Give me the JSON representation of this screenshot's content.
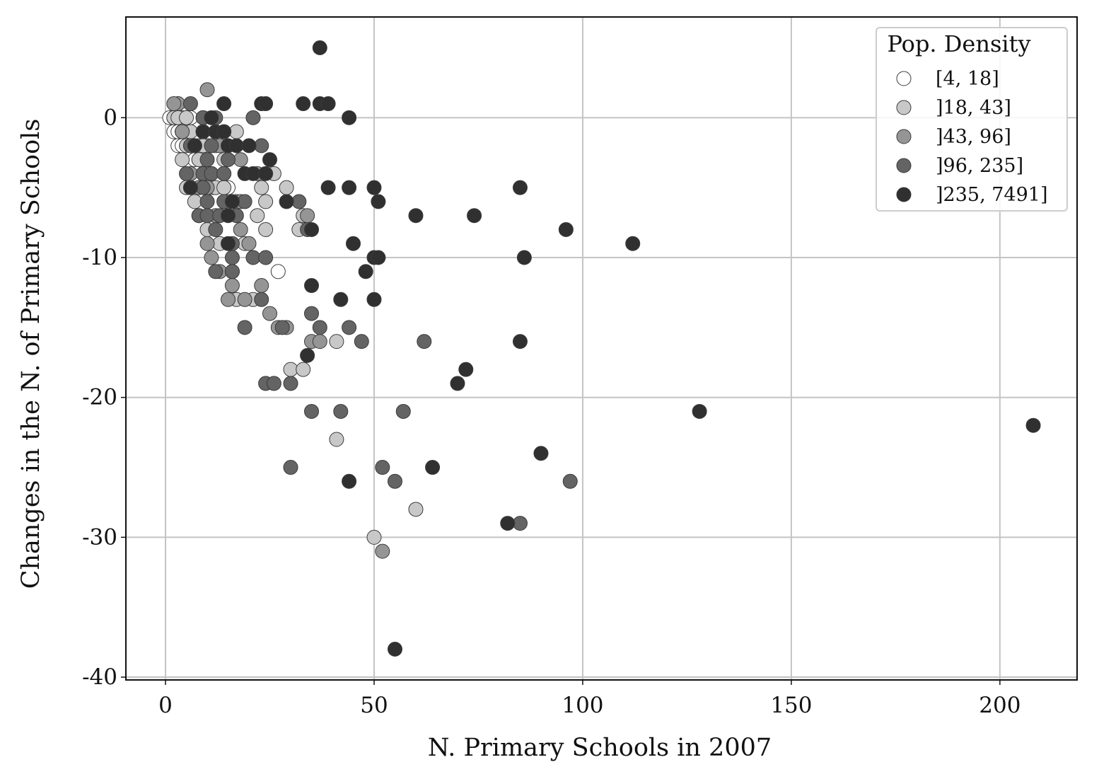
{
  "chart_data": {
    "type": "scatter",
    "xlabel": "N. Primary Schools in 2007",
    "ylabel": "Changes in the N. of Primary Schools",
    "xlim": [
      -9.5,
      218.5
    ],
    "ylim": [
      -40.2,
      7.2
    ],
    "xticks": [
      0,
      50,
      100,
      150,
      200
    ],
    "yticks": [
      0,
      -10,
      -20,
      -30,
      -40
    ],
    "grid": true,
    "legend": {
      "title": "Pop. Density",
      "placement": "top-right"
    },
    "series": [
      {
        "name": "[4, 18]",
        "color": "#ffffff",
        "points": [
          [
            1,
            0
          ],
          [
            2,
            0
          ],
          [
            3,
            0
          ],
          [
            4,
            0
          ],
          [
            5,
            0
          ],
          [
            6,
            0
          ],
          [
            2,
            -1
          ],
          [
            3,
            -1
          ],
          [
            4,
            -1
          ],
          [
            5,
            -1
          ],
          [
            3,
            -2
          ],
          [
            4,
            -2
          ],
          [
            6,
            -2
          ],
          [
            8,
            -2
          ],
          [
            10,
            -2
          ],
          [
            7,
            -3
          ],
          [
            8,
            -3
          ],
          [
            11,
            -5
          ],
          [
            15,
            -5
          ],
          [
            15,
            -6
          ],
          [
            27,
            -11
          ]
        ]
      },
      {
        "name": "]18, 43]",
        "color": "#c8c8c8",
        "points": [
          [
            2,
            0
          ],
          [
            3,
            0
          ],
          [
            5,
            0
          ],
          [
            9,
            0
          ],
          [
            4,
            -1
          ],
          [
            6,
            -1
          ],
          [
            17,
            -1
          ],
          [
            5,
            -2
          ],
          [
            9,
            -2
          ],
          [
            12,
            -2
          ],
          [
            4,
            -3
          ],
          [
            8,
            -3
          ],
          [
            14,
            -3
          ],
          [
            9,
            -4
          ],
          [
            26,
            -4
          ],
          [
            5,
            -5
          ],
          [
            12,
            -5
          ],
          [
            14,
            -5
          ],
          [
            23,
            -5
          ],
          [
            29,
            -5
          ],
          [
            7,
            -6
          ],
          [
            17,
            -6
          ],
          [
            24,
            -6
          ],
          [
            8,
            -7
          ],
          [
            22,
            -7
          ],
          [
            33,
            -7
          ],
          [
            10,
            -8
          ],
          [
            24,
            -8
          ],
          [
            32,
            -8
          ],
          [
            13,
            -9
          ],
          [
            19,
            -9
          ],
          [
            17,
            -13
          ],
          [
            21,
            -13
          ],
          [
            41,
            -16
          ],
          [
            30,
            -18
          ],
          [
            33,
            -18
          ],
          [
            41,
            -23
          ],
          [
            60,
            -28
          ],
          [
            50,
            -30
          ]
        ]
      },
      {
        "name": "]43, 96]",
        "color": "#959595",
        "points": [
          [
            3,
            1
          ],
          [
            10,
            2
          ],
          [
            2,
            1
          ],
          [
            4,
            -1
          ],
          [
            9,
            -1
          ],
          [
            14,
            -1
          ],
          [
            6,
            -2
          ],
          [
            13,
            -2
          ],
          [
            18,
            -3
          ],
          [
            6,
            -4
          ],
          [
            11,
            -4
          ],
          [
            14,
            -4
          ],
          [
            22,
            -4
          ],
          [
            8,
            -5
          ],
          [
            10,
            -5
          ],
          [
            18,
            -6
          ],
          [
            34,
            -7
          ],
          [
            12,
            -7
          ],
          [
            18,
            -8
          ],
          [
            10,
            -9
          ],
          [
            20,
            -9
          ],
          [
            11,
            -10
          ],
          [
            13,
            -11
          ],
          [
            16,
            -11
          ],
          [
            23,
            -12
          ],
          [
            16,
            -12
          ],
          [
            15,
            -13
          ],
          [
            19,
            -13
          ],
          [
            25,
            -14
          ],
          [
            27,
            -15
          ],
          [
            29,
            -15
          ],
          [
            35,
            -16
          ],
          [
            37,
            -16
          ],
          [
            52,
            -31
          ]
        ]
      },
      {
        "name": "]96, 235]",
        "color": "#646464",
        "points": [
          [
            6,
            1
          ],
          [
            21,
            0
          ],
          [
            9,
            0
          ],
          [
            12,
            0
          ],
          [
            6,
            -2
          ],
          [
            7,
            -2
          ],
          [
            11,
            -2
          ],
          [
            23,
            -2
          ],
          [
            10,
            -3
          ],
          [
            15,
            -3
          ],
          [
            5,
            -4
          ],
          [
            9,
            -4
          ],
          [
            11,
            -4
          ],
          [
            14,
            -4
          ],
          [
            6,
            -5
          ],
          [
            9,
            -5
          ],
          [
            10,
            -6
          ],
          [
            14,
            -6
          ],
          [
            19,
            -6
          ],
          [
            32,
            -6
          ],
          [
            8,
            -7
          ],
          [
            10,
            -7
          ],
          [
            13,
            -7
          ],
          [
            17,
            -7
          ],
          [
            12,
            -8
          ],
          [
            34,
            -8
          ],
          [
            16,
            -9
          ],
          [
            16,
            -10
          ],
          [
            21,
            -10
          ],
          [
            24,
            -10
          ],
          [
            12,
            -11
          ],
          [
            16,
            -11
          ],
          [
            23,
            -13
          ],
          [
            35,
            -14
          ],
          [
            19,
            -15
          ],
          [
            28,
            -15
          ],
          [
            37,
            -15
          ],
          [
            44,
            -15
          ],
          [
            47,
            -16
          ],
          [
            62,
            -16
          ],
          [
            24,
            -19
          ],
          [
            26,
            -19
          ],
          [
            30,
            -19
          ],
          [
            35,
            -21
          ],
          [
            42,
            -21
          ],
          [
            57,
            -21
          ],
          [
            30,
            -25
          ],
          [
            52,
            -25
          ],
          [
            55,
            -26
          ],
          [
            97,
            -26
          ],
          [
            85,
            -29
          ]
        ]
      },
      {
        "name": "]235, 7491]",
        "color": "#303030",
        "points": [
          [
            37,
            5
          ],
          [
            14,
            1
          ],
          [
            23,
            1
          ],
          [
            24,
            1
          ],
          [
            33,
            1
          ],
          [
            37,
            1
          ],
          [
            39,
            1
          ],
          [
            44,
            0
          ],
          [
            11,
            0
          ],
          [
            9,
            -1
          ],
          [
            12,
            -1
          ],
          [
            14,
            -1
          ],
          [
            7,
            -2
          ],
          [
            15,
            -2
          ],
          [
            17,
            -2
          ],
          [
            20,
            -2
          ],
          [
            25,
            -3
          ],
          [
            19,
            -4
          ],
          [
            21,
            -4
          ],
          [
            24,
            -4
          ],
          [
            6,
            -5
          ],
          [
            39,
            -5
          ],
          [
            44,
            -5
          ],
          [
            50,
            -5
          ],
          [
            85,
            -5
          ],
          [
            16,
            -6
          ],
          [
            29,
            -6
          ],
          [
            51,
            -6
          ],
          [
            60,
            -7
          ],
          [
            74,
            -7
          ],
          [
            15,
            -7
          ],
          [
            35,
            -8
          ],
          [
            96,
            -8
          ],
          [
            15,
            -9
          ],
          [
            45,
            -9
          ],
          [
            112,
            -9
          ],
          [
            50,
            -10
          ],
          [
            51,
            -10
          ],
          [
            86,
            -10
          ],
          [
            48,
            -11
          ],
          [
            35,
            -12
          ],
          [
            42,
            -13
          ],
          [
            50,
            -13
          ],
          [
            85,
            -16
          ],
          [
            34,
            -17
          ],
          [
            72,
            -18
          ],
          [
            70,
            -19
          ],
          [
            128,
            -21
          ],
          [
            208,
            -22
          ],
          [
            90,
            -24
          ],
          [
            64,
            -25
          ],
          [
            44,
            -26
          ],
          [
            82,
            -29
          ],
          [
            55,
            -38
          ]
        ]
      }
    ]
  }
}
